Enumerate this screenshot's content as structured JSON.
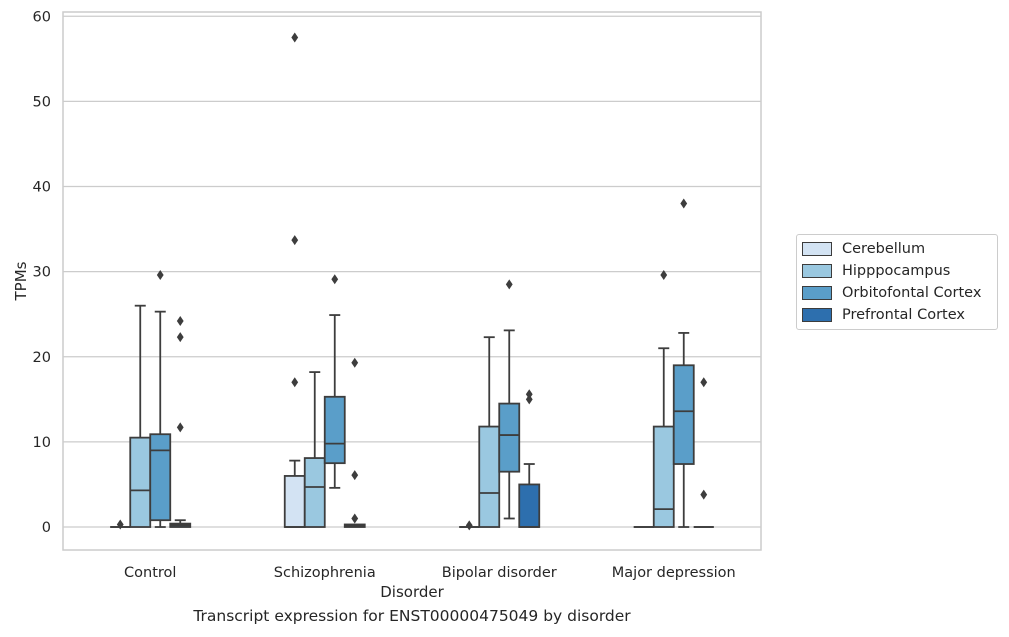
{
  "caption": "Transcript expression for ENST00000475049 by disorder",
  "chart_data": {
    "type": "box",
    "xlabel": "Disorder",
    "ylabel": "TPMs",
    "ylim": [
      -2.7,
      60.5
    ],
    "yticks": [
      0,
      10,
      20,
      30,
      40,
      50,
      60
    ],
    "grid": "horizontal",
    "legend_position": "right",
    "categories": [
      "Control",
      "Schizophrenia",
      "Bipolar disorder",
      "Major depression"
    ],
    "series": [
      {
        "name": "Cerebellum",
        "color": "#d3e3f3",
        "boxes": [
          {
            "q1": 0,
            "median": 0,
            "q3": 0,
            "whisker_low": 0,
            "whisker_high": 0,
            "outliers": [
              0.3
            ]
          },
          {
            "q1": 0,
            "median": 0,
            "q3": 6.0,
            "whisker_low": 0,
            "whisker_high": 7.8,
            "outliers": [
              17.0,
              33.7,
              57.5
            ]
          },
          {
            "q1": 0,
            "median": 0,
            "q3": 0,
            "whisker_low": 0,
            "whisker_high": 0,
            "outliers": [
              0.2
            ]
          },
          {
            "q1": 0,
            "median": 0,
            "q3": 0,
            "whisker_low": 0,
            "whisker_high": 0,
            "outliers": []
          }
        ]
      },
      {
        "name": "Hipppocampus",
        "color": "#9ac8e0",
        "boxes": [
          {
            "q1": 0,
            "median": 4.3,
            "q3": 10.5,
            "whisker_low": 0,
            "whisker_high": 26.0,
            "outliers": []
          },
          {
            "q1": 0,
            "median": 4.7,
            "q3": 8.1,
            "whisker_low": 0,
            "whisker_high": 18.2,
            "outliers": []
          },
          {
            "q1": 0,
            "median": 4.0,
            "q3": 11.8,
            "whisker_low": 0,
            "whisker_high": 22.3,
            "outliers": []
          },
          {
            "q1": 0,
            "median": 2.1,
            "q3": 11.8,
            "whisker_low": 0,
            "whisker_high": 21.0,
            "outliers": [
              29.6
            ]
          }
        ]
      },
      {
        "name": "Orbitofontal Cortex",
        "color": "#5a9ec9",
        "boxes": [
          {
            "q1": 0.8,
            "median": 9.0,
            "q3": 10.9,
            "whisker_low": 0,
            "whisker_high": 25.3,
            "outliers": [
              29.6
            ]
          },
          {
            "q1": 7.5,
            "median": 9.8,
            "q3": 15.3,
            "whisker_low": 4.6,
            "whisker_high": 24.9,
            "outliers": [
              29.1
            ]
          },
          {
            "q1": 6.5,
            "median": 10.8,
            "q3": 14.5,
            "whisker_low": 1.0,
            "whisker_high": 23.1,
            "outliers": [
              28.5
            ]
          },
          {
            "q1": 7.4,
            "median": 13.6,
            "q3": 19.0,
            "whisker_low": 0,
            "whisker_high": 22.8,
            "outliers": [
              38.0
            ]
          }
        ]
      },
      {
        "name": "Prefrontal Cortex",
        "color": "#2d6fae",
        "boxes": [
          {
            "q1": 0,
            "median": 0.2,
            "q3": 0.4,
            "whisker_low": 0,
            "whisker_high": 0.8,
            "outliers": [
              11.7,
              22.3,
              24.2
            ]
          },
          {
            "q1": 0,
            "median": 0.15,
            "q3": 0.3,
            "whisker_low": 0,
            "whisker_high": 0.3,
            "outliers": [
              1.0,
              6.1,
              19.3
            ]
          },
          {
            "q1": 0,
            "median": 0,
            "q3": 5.0,
            "whisker_low": 0,
            "whisker_high": 7.4,
            "outliers": [
              15.0,
              15.6
            ]
          },
          {
            "q1": 0,
            "median": 0,
            "q3": 0,
            "whisker_low": 0,
            "whisker_high": 0,
            "outliers": [
              3.8,
              17.0
            ]
          }
        ]
      }
    ]
  }
}
